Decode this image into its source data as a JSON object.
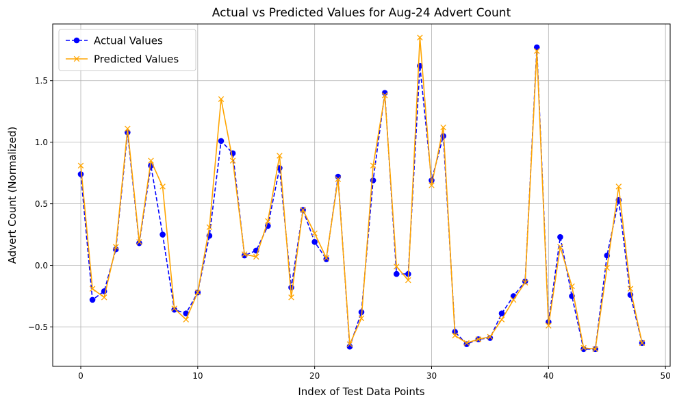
{
  "chart_data": {
    "type": "line",
    "title": "Actual vs Predicted Values for Aug-24 Advert Count",
    "xlabel": "Index of Test Data Points",
    "ylabel": "Advert Count (Normalized)",
    "xlim": [
      -2.4,
      50.4
    ],
    "ylim": [
      -0.82,
      1.96
    ],
    "xticks": [
      0,
      10,
      20,
      30,
      40,
      50
    ],
    "yticks": [
      -0.5,
      0.0,
      0.5,
      1.0,
      1.5
    ],
    "ytick_labels": [
      "−0.5",
      "0.0",
      "0.5",
      "1.0",
      "1.5"
    ],
    "grid": true,
    "legend_position": "upper-left",
    "series": [
      {
        "name": "Actual Values",
        "color": "#0000ff",
        "line_style": "dashed",
        "marker": "circle",
        "values": [
          0.74,
          -0.28,
          -0.21,
          0.13,
          1.08,
          0.18,
          0.81,
          0.25,
          -0.36,
          -0.39,
          -0.22,
          0.24,
          1.01,
          0.91,
          0.08,
          0.12,
          0.32,
          0.79,
          -0.18,
          0.45,
          0.19,
          0.05,
          0.72,
          -0.66,
          -0.38,
          0.69,
          1.4,
          -0.07,
          -0.07,
          1.62,
          0.69,
          1.05,
          -0.54,
          -0.64,
          -0.6,
          -0.59,
          -0.39,
          -0.25,
          -0.13,
          1.77,
          -0.46,
          0.23,
          -0.25,
          -0.68,
          -0.68,
          0.08,
          0.53,
          -0.24,
          -0.63
        ]
      },
      {
        "name": "Predicted Values",
        "color": "#ffa500",
        "line_style": "solid",
        "marker": "x",
        "values": [
          0.81,
          -0.19,
          -0.26,
          0.15,
          1.11,
          0.19,
          0.85,
          0.64,
          -0.35,
          -0.44,
          -0.22,
          0.31,
          1.35,
          0.85,
          0.09,
          0.07,
          0.36,
          0.89,
          -0.26,
          0.45,
          0.26,
          0.06,
          0.7,
          -0.64,
          -0.43,
          0.81,
          1.38,
          -0.01,
          -0.12,
          1.85,
          0.65,
          1.12,
          -0.57,
          -0.63,
          -0.6,
          -0.58,
          -0.44,
          -0.28,
          -0.14,
          1.74,
          -0.49,
          0.15,
          -0.17,
          -0.67,
          -0.68,
          -0.02,
          0.64,
          -0.19,
          -0.63
        ]
      }
    ]
  }
}
